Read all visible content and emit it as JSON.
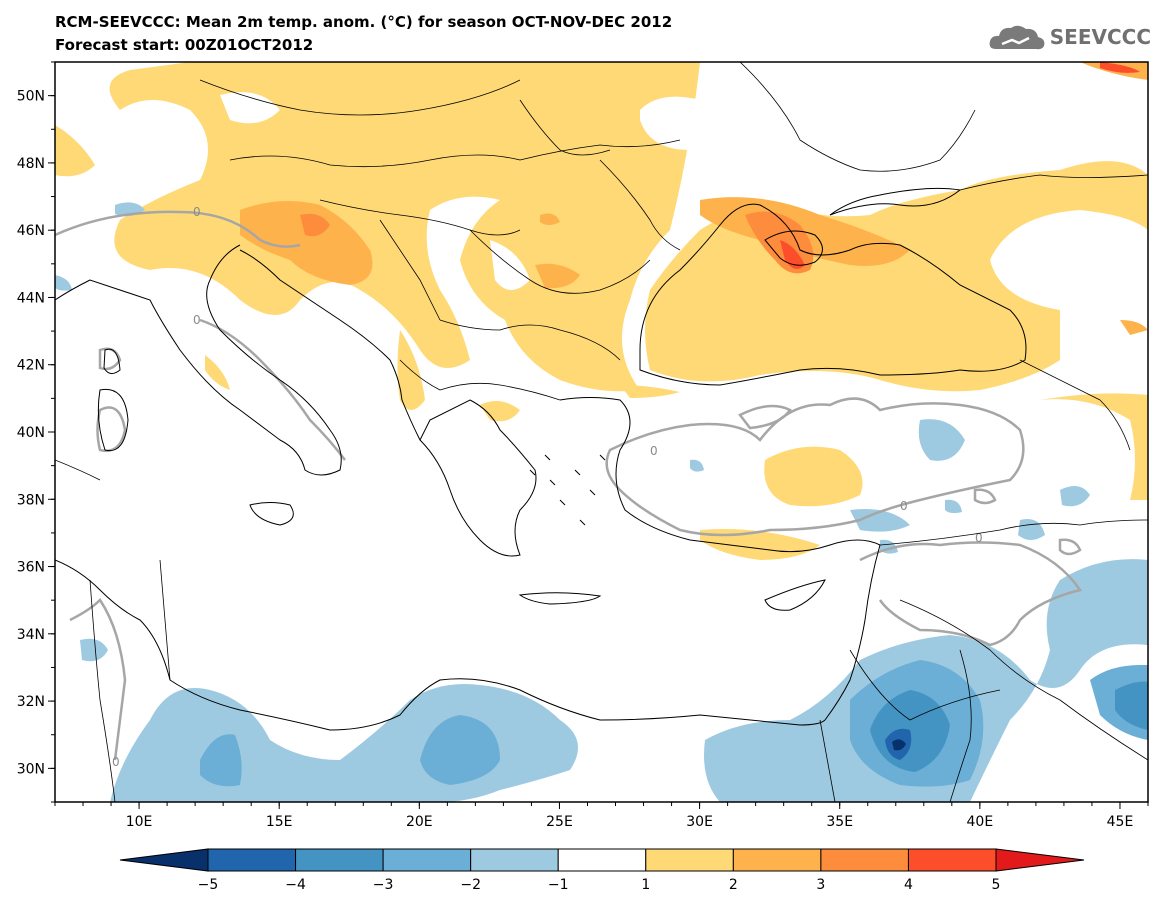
{
  "header": {
    "title": "RCM-SEEVCCC: Mean 2m temp. anom. (°C) for season OCT-NOV-DEC 2012",
    "subtitle": "Forecast start: 00Z01OCT2012",
    "logo_text": "SEEVCCC",
    "logo_icon": "cloud-icon"
  },
  "map": {
    "lon_range": [
      7,
      46
    ],
    "lat_range": [
      29,
      51
    ],
    "lat_ticks": [
      "50N",
      "48N",
      "46N",
      "44N",
      "42N",
      "40N",
      "38N",
      "36N",
      "34N",
      "32N",
      "30N"
    ],
    "lon_ticks": [
      "10E",
      "15E",
      "20E",
      "25E",
      "30E",
      "35E",
      "40E",
      "45E"
    ],
    "contour_label": "0",
    "contour_color": "#a6a6a6",
    "coastline_color": "#000000"
  },
  "colorbar": {
    "labels": [
      "−5",
      "−4",
      "−3",
      "−2",
      "−1",
      "1",
      "2",
      "3",
      "4",
      "5"
    ],
    "colors": [
      "#08306b",
      "#2166ac",
      "#4393c3",
      "#6baed6",
      "#9ecae1",
      "#ffffff",
      "#fed976",
      "#feb24c",
      "#fd8d3c",
      "#fc4e2a",
      "#e31a1c"
    ]
  }
}
